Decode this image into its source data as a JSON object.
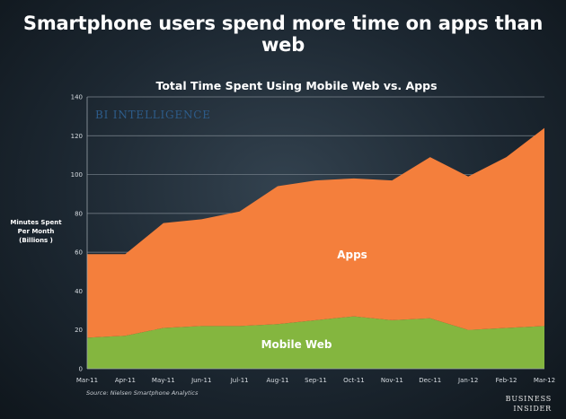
{
  "headline": "Smartphone users spend more time on apps than web",
  "chart_data": {
    "type": "area",
    "stacked": true,
    "title": "Total Time Spent Using Mobile Web vs. Apps",
    "ylabel": [
      "Minutes Spent",
      "Per Month",
      "(Billions )"
    ],
    "xlabel": "",
    "ylim": [
      0,
      140
    ],
    "yticks": [
      0,
      20,
      40,
      60,
      80,
      100,
      120,
      140
    ],
    "categories": [
      "Mar-11",
      "Apr-11",
      "May-11",
      "Jun-11",
      "Jul-11",
      "Aug-11",
      "Sep-11",
      "Oct-11",
      "Nov-11",
      "Dec-11",
      "Jan-12",
      "Feb-12",
      "Mar-12"
    ],
    "series": [
      {
        "name": "Mobile Web",
        "color": "#84b63f",
        "values": [
          16,
          17,
          21,
          22,
          22,
          23,
          25,
          27,
          25,
          26,
          20,
          21,
          22
        ]
      },
      {
        "name": "Apps",
        "color": "#f47f3c",
        "values": [
          43,
          42,
          54,
          55,
          59,
          71,
          72,
          71,
          72,
          83,
          79,
          88,
          102
        ]
      }
    ],
    "grid": true
  },
  "watermark": "BI INTELLIGENCE",
  "source": "Source: Nielsen Smartphone Analytics",
  "logo": [
    "BUSINESS",
    "INSIDER"
  ]
}
